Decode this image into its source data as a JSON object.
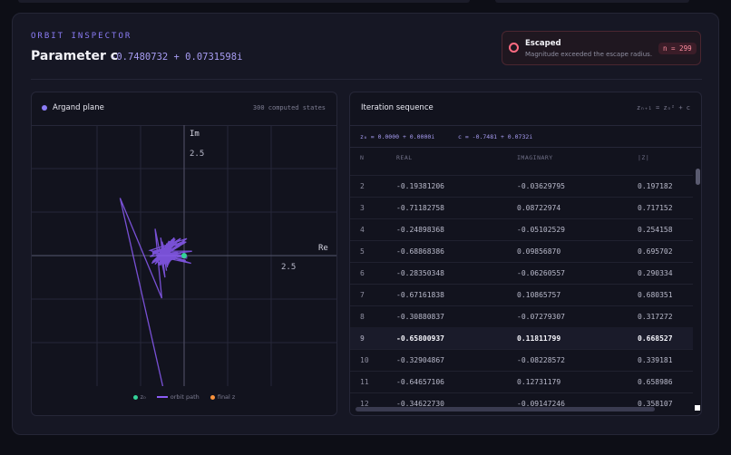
{
  "header": {
    "eyebrow": "ORBIT INSPECTOR",
    "title": "Parameter c",
    "c_value": "-0.7480732 + 0.0731598i"
  },
  "status": {
    "title": "Escaped",
    "description": "Magnitude exceeded the escape radius.",
    "badge": "n = 299",
    "color": "#ff6b81"
  },
  "argand": {
    "title": "Argand plane",
    "meta": "300 computed states",
    "axis_im": "Im",
    "axis_re": "Re",
    "tick_im": "2.5",
    "tick_re": "2.5",
    "legend": {
      "z0": "z₀",
      "path": "orbit path",
      "final": "final z"
    },
    "colors": {
      "path": "#8b5cf6",
      "z0": "#34d399",
      "final": "#fb923c"
    }
  },
  "sequence": {
    "title": "Iteration sequence",
    "formula": "zₙ₊₁ = zₙ² + c",
    "z0_text": "z₀ = 0.0000 + 0.0000i",
    "c_text": "c = -0.7481 + 0.0732i",
    "columns": [
      "N",
      "REAL",
      "IMAGINARY",
      "|Z|"
    ],
    "highlight_row": 9,
    "rows": [
      [
        "2",
        "-0.19381206",
        "-0.03629795",
        "0.197182"
      ],
      [
        "3",
        "-0.71182758",
        "0.08722974",
        "0.717152"
      ],
      [
        "4",
        "-0.24898368",
        "-0.05102529",
        "0.254158"
      ],
      [
        "5",
        "-0.68868386",
        "0.09856870",
        "0.695702"
      ],
      [
        "6",
        "-0.28350348",
        "-0.06260557",
        "0.290334"
      ],
      [
        "7",
        "-0.67161838",
        "0.10865757",
        "0.680351"
      ],
      [
        "8",
        "-0.30880837",
        "-0.07279307",
        "0.317272"
      ],
      [
        "9",
        "-0.65800937",
        "0.11811799",
        "0.668527"
      ],
      [
        "10",
        "-0.32904867",
        "-0.08228572",
        "0.339181"
      ],
      [
        "11",
        "-0.64657106",
        "0.12731179",
        "0.658986"
      ],
      [
        "12",
        "-0.34622730",
        "-0.09147246",
        "0.358107"
      ]
    ]
  }
}
